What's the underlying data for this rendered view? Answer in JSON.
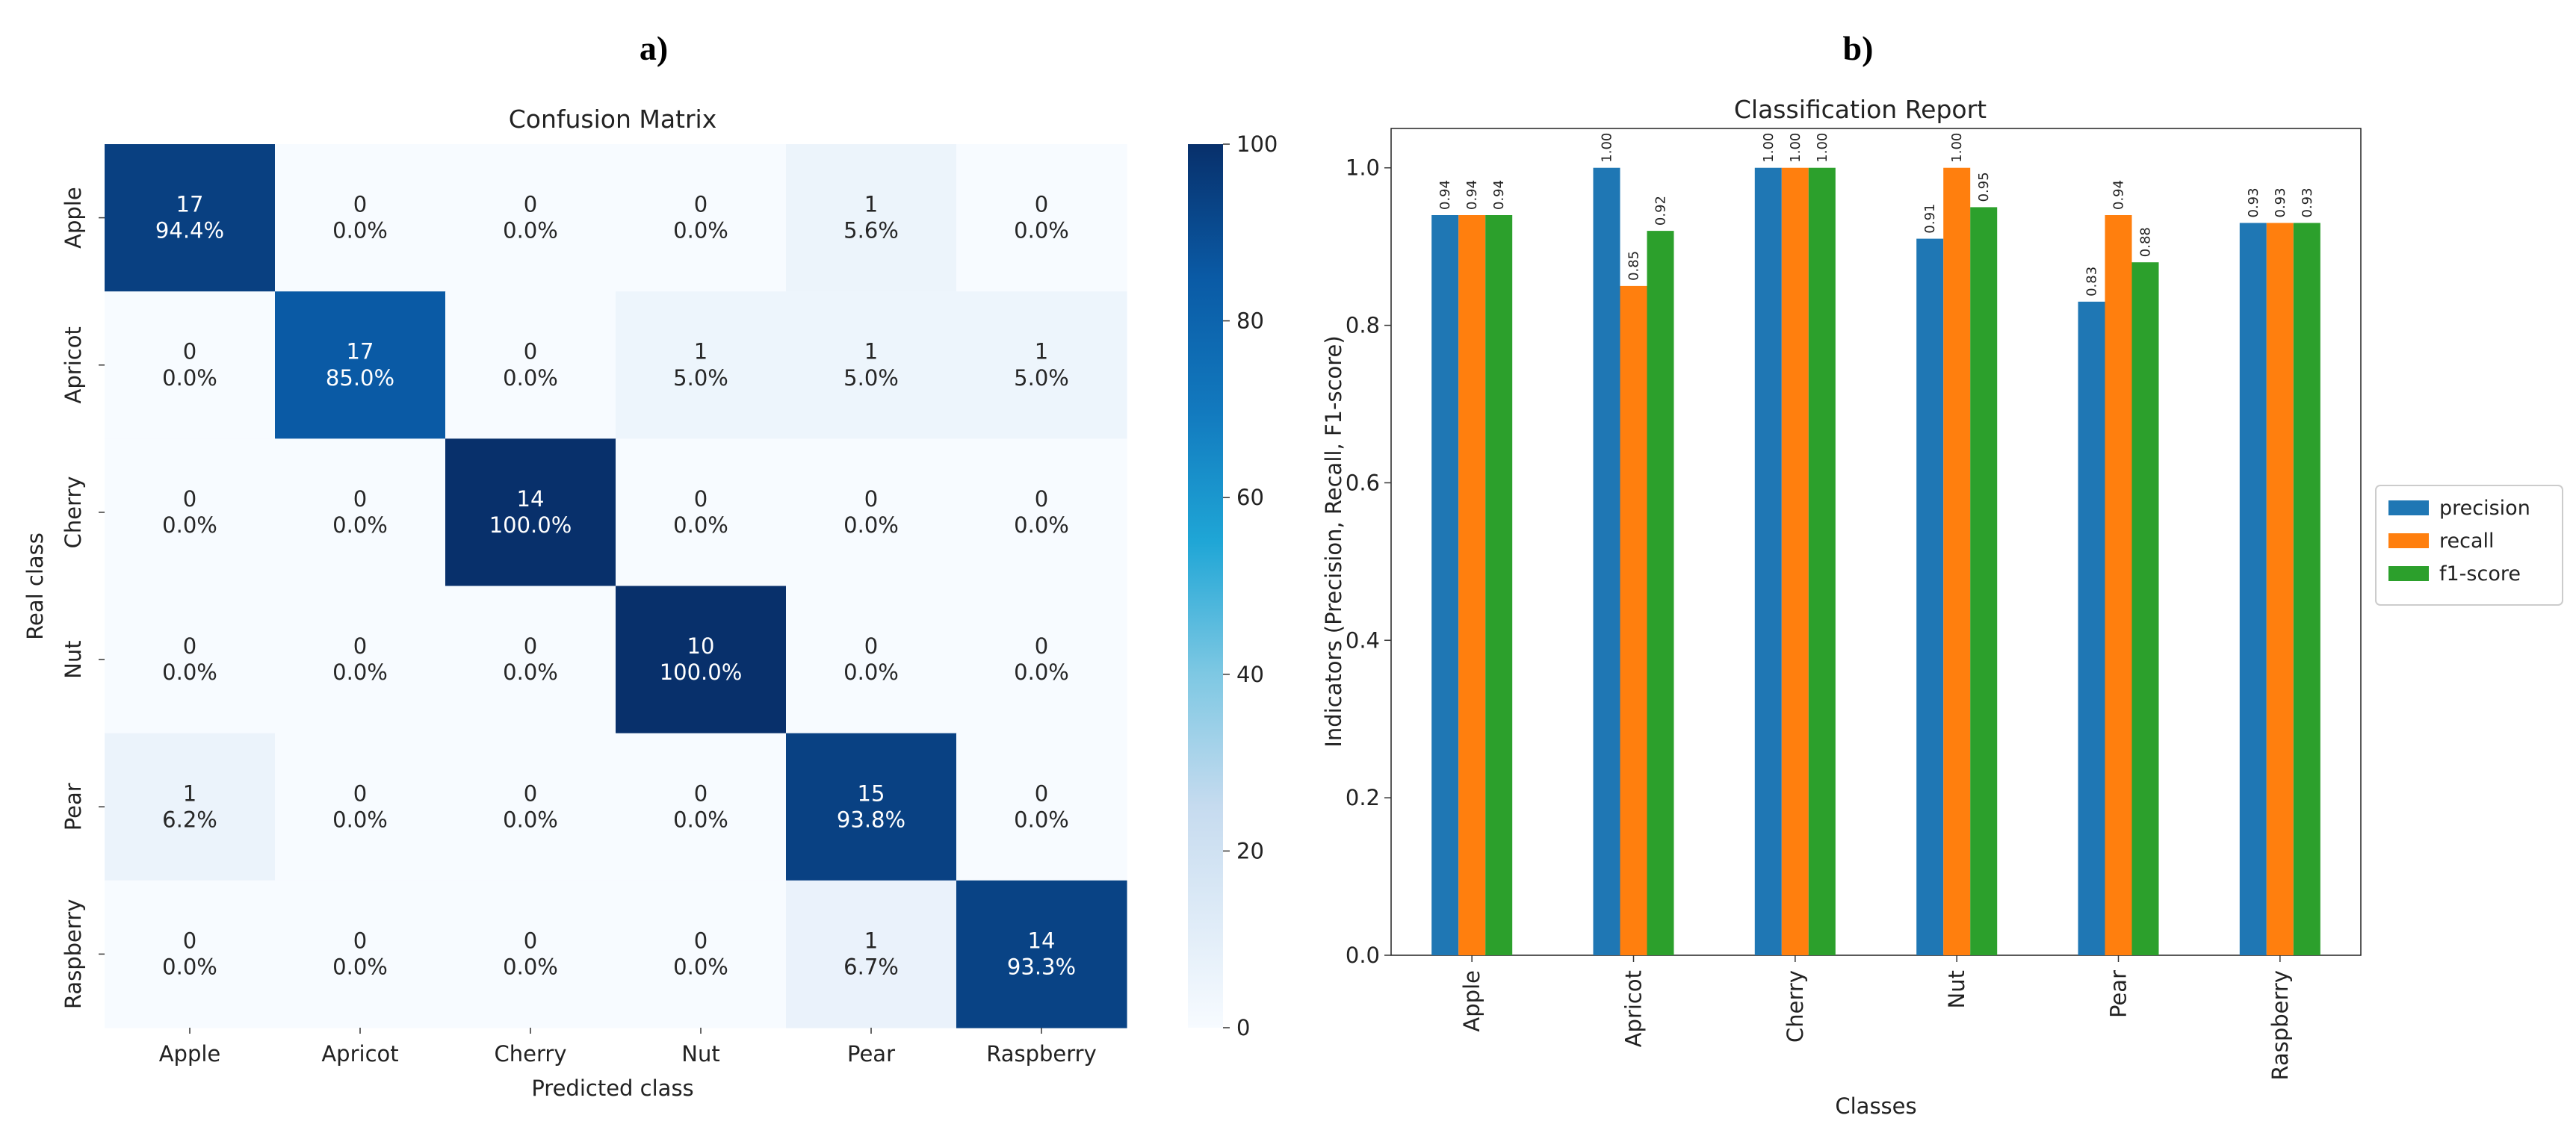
{
  "panels": {
    "a_label": "a)",
    "b_label": "b)"
  },
  "confusion": {
    "title": "Confusion Matrix",
    "xlabel": "Predicted class",
    "ylabel": "Real class",
    "classes": [
      "Apple",
      "Apricot",
      "Cherry",
      "Nut",
      "Pear",
      "Raspberry"
    ],
    "counts": [
      [
        17,
        0,
        0,
        0,
        1,
        0
      ],
      [
        0,
        17,
        0,
        1,
        1,
        1
      ],
      [
        0,
        0,
        14,
        0,
        0,
        0
      ],
      [
        0,
        0,
        0,
        10,
        0,
        0
      ],
      [
        1,
        0,
        0,
        0,
        15,
        0
      ],
      [
        0,
        0,
        0,
        0,
        1,
        14
      ]
    ],
    "percents": [
      [
        "94.4%",
        "0.0%",
        "0.0%",
        "0.0%",
        "5.6%",
        "0.0%"
      ],
      [
        "0.0%",
        "85.0%",
        "0.0%",
        "5.0%",
        "5.0%",
        "5.0%"
      ],
      [
        "0.0%",
        "0.0%",
        "100.0%",
        "0.0%",
        "0.0%",
        "0.0%"
      ],
      [
        "0.0%",
        "0.0%",
        "0.0%",
        "100.0%",
        "0.0%",
        "0.0%"
      ],
      [
        "6.2%",
        "0.0%",
        "0.0%",
        "0.0%",
        "93.8%",
        "0.0%"
      ],
      [
        "0.0%",
        "0.0%",
        "0.0%",
        "0.0%",
        "6.7%",
        "93.3%"
      ]
    ],
    "colorbar": {
      "min": 0,
      "max": 100,
      "ticks": [
        "0",
        "20",
        "40",
        "60",
        "80",
        "100"
      ]
    }
  },
  "chart_data": [
    {
      "type": "heatmap",
      "title": "Confusion Matrix",
      "xlabel": "Predicted class",
      "ylabel": "Real class",
      "x_categories": [
        "Apple",
        "Apricot",
        "Cherry",
        "Nut",
        "Pear",
        "Raspberry"
      ],
      "y_categories": [
        "Apple",
        "Apricot",
        "Cherry",
        "Nut",
        "Pear",
        "Raspberry"
      ],
      "values_percent": [
        [
          94.4,
          0,
          0,
          0,
          5.6,
          0
        ],
        [
          0,
          85.0,
          0,
          5.0,
          5.0,
          5.0
        ],
        [
          0,
          0,
          100.0,
          0,
          0,
          0
        ],
        [
          0,
          0,
          0,
          100.0,
          0,
          0
        ],
        [
          6.2,
          0,
          0,
          0,
          93.8,
          0
        ],
        [
          0,
          0,
          0,
          0,
          6.7,
          93.3
        ]
      ],
      "colorbar_range": [
        0,
        100
      ]
    },
    {
      "type": "bar",
      "title": "Classification Report",
      "xlabel": "Classes",
      "ylabel": "Indicators (Precision, Recall, F1-score)",
      "categories": [
        "Apple",
        "Apricot",
        "Cherry",
        "Nut",
        "Pear",
        "Raspberry"
      ],
      "ylim": [
        0,
        1.05
      ],
      "yticks": [
        "0.0",
        "0.2",
        "0.4",
        "0.6",
        "0.8",
        "1.0"
      ],
      "legend_position": "right-outside",
      "series": [
        {
          "name": "precision",
          "color": "#1f77b4",
          "values": [
            0.94,
            1.0,
            1.0,
            0.91,
            0.83,
            0.93
          ],
          "labels": [
            "0.94",
            "1.00",
            "1.00",
            "0.91",
            "0.83",
            "0.93"
          ]
        },
        {
          "name": "recall",
          "color": "#ff7f0e",
          "values": [
            0.94,
            0.85,
            1.0,
            1.0,
            0.94,
            0.93
          ],
          "labels": [
            "0.94",
            "0.85",
            "1.00",
            "1.00",
            "0.94",
            "0.93"
          ]
        },
        {
          "name": "f1-score",
          "color": "#2ca02c",
          "values": [
            0.94,
            0.92,
            1.0,
            0.95,
            0.88,
            0.93
          ],
          "labels": [
            "0.94",
            "0.92",
            "1.00",
            "0.95",
            "0.88",
            "0.93"
          ]
        }
      ]
    }
  ]
}
